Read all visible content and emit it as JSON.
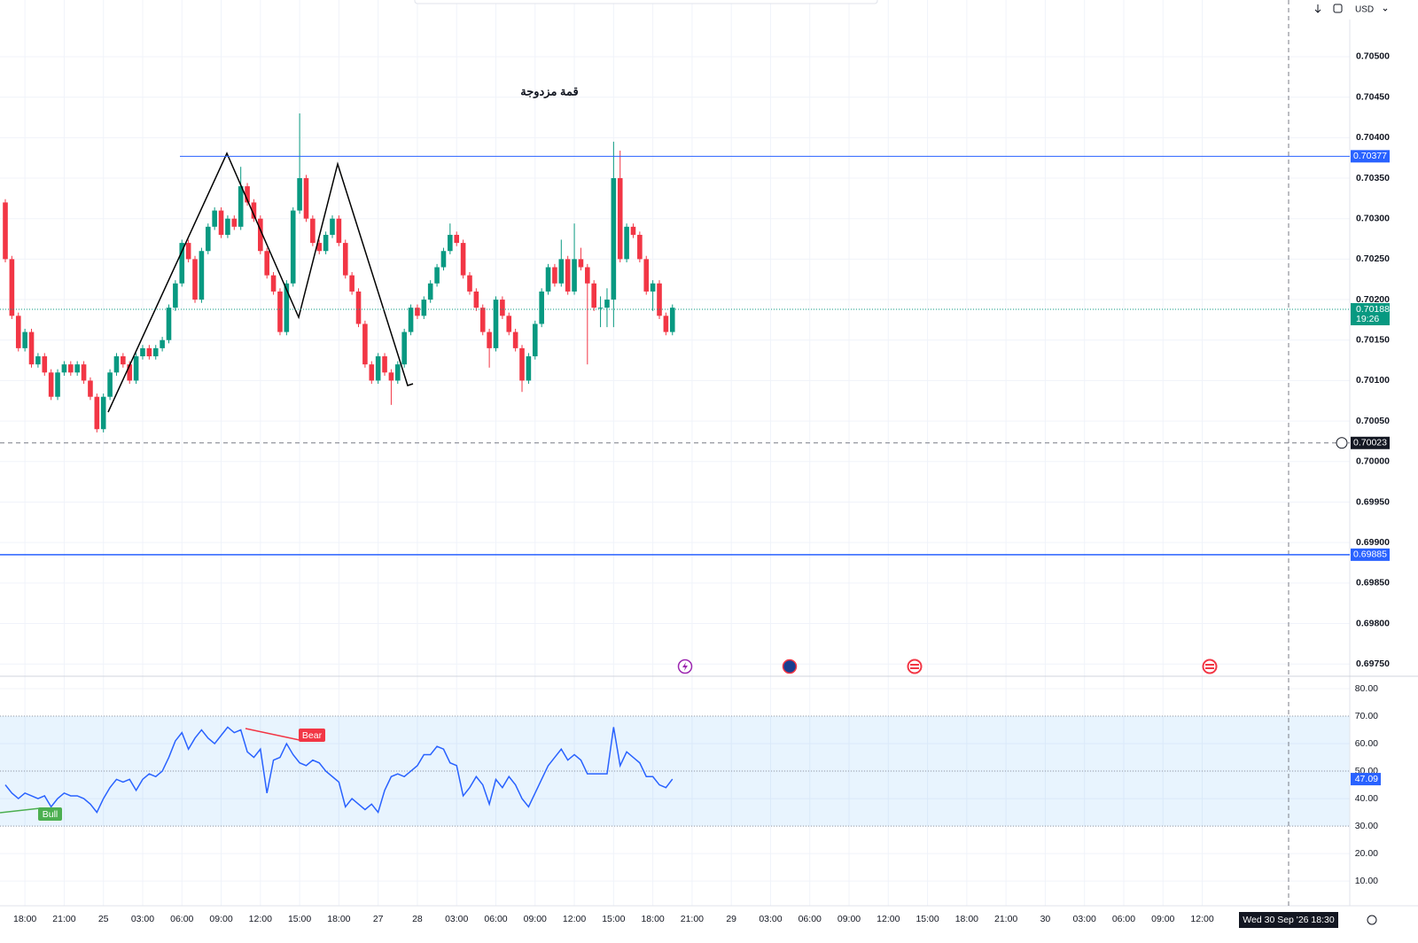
{
  "chart_data": [
    {
      "type": "candlestick",
      "title": "قمة مزدوجة",
      "currency": "USD",
      "up_color": "#089981",
      "down_color": "#f23645",
      "open": [
        0.7032,
        0.7025,
        0.7018,
        0.7014,
        0.7016,
        0.7012,
        0.7013,
        0.7011,
        0.7008,
        0.7011,
        0.7012,
        0.7011,
        0.7012,
        0.701,
        0.7008,
        0.7004,
        0.7008,
        0.7011,
        0.7013,
        0.7012,
        0.701,
        0.7013,
        0.7014,
        0.7013,
        0.7014,
        0.7015,
        0.7019,
        0.7022,
        0.7027,
        0.7025,
        0.702,
        0.7026,
        0.7029,
        0.7031,
        0.7028,
        0.703,
        0.7029,
        0.7034,
        0.7032,
        0.703,
        0.7026,
        0.7023,
        0.7021,
        0.7016,
        0.7022,
        0.7031,
        0.7035,
        0.703,
        0.7027,
        0.7026,
        0.7028,
        0.703,
        0.7027,
        0.7023,
        0.7021,
        0.7017,
        0.7012,
        0.701,
        0.7013,
        0.7011,
        0.701,
        0.7012,
        0.7016,
        0.7019,
        0.7018,
        0.702,
        0.7022,
        0.7024,
        0.7026,
        0.7028,
        0.7027,
        0.7023,
        0.7021,
        0.7019,
        0.7016,
        0.7014,
        0.702,
        0.7018,
        0.7016,
        0.7014,
        0.701,
        0.7013,
        0.7017,
        0.7021,
        0.7024,
        0.7022,
        0.7025,
        0.7021,
        0.7025,
        0.7024,
        0.7022,
        0.7019,
        0.7019,
        0.702,
        0.7035,
        0.7025,
        0.7029,
        0.7028,
        0.7025,
        0.7021,
        0.7022,
        0.7018,
        0.7016
      ],
      "high": [
        0.70324,
        0.70254,
        0.70184,
        0.70164,
        0.70164,
        0.70134,
        0.70134,
        0.70114,
        0.70114,
        0.70124,
        0.70124,
        0.70124,
        0.70124,
        0.70104,
        0.70084,
        0.70084,
        0.70114,
        0.70134,
        0.70134,
        0.70124,
        0.70134,
        0.70144,
        0.70144,
        0.70144,
        0.70154,
        0.70194,
        0.70224,
        0.70274,
        0.70274,
        0.70254,
        0.70264,
        0.70294,
        0.70314,
        0.70314,
        0.70304,
        0.70304,
        0.70364,
        0.70344,
        0.70324,
        0.70304,
        0.70264,
        0.70234,
        0.70214,
        0.70224,
        0.70314,
        0.7043,
        0.70354,
        0.70304,
        0.70274,
        0.70284,
        0.70304,
        0.70304,
        0.70274,
        0.70234,
        0.70214,
        0.70174,
        0.70124,
        0.70134,
        0.70134,
        0.70114,
        0.70124,
        0.70164,
        0.70194,
        0.70194,
        0.70204,
        0.70224,
        0.70244,
        0.70264,
        0.70294,
        0.70284,
        0.70274,
        0.70234,
        0.70214,
        0.70194,
        0.70164,
        0.70204,
        0.70204,
        0.70184,
        0.70164,
        0.70144,
        0.70134,
        0.70174,
        0.70214,
        0.70244,
        0.70244,
        0.70274,
        0.70254,
        0.70294,
        0.70264,
        0.70244,
        0.70224,
        0.70204,
        0.70214,
        0.70395,
        0.70384,
        0.70294,
        0.70294,
        0.70284,
        0.70254,
        0.70224,
        0.70224,
        0.70184,
        0.70194
      ],
      "low": [
        0.70246,
        0.70176,
        0.70136,
        0.70136,
        0.70116,
        0.70116,
        0.70106,
        0.70076,
        0.70076,
        0.70106,
        0.70106,
        0.70106,
        0.70096,
        0.70076,
        0.70036,
        0.70036,
        0.70076,
        0.70106,
        0.70116,
        0.70096,
        0.70096,
        0.70126,
        0.70126,
        0.70126,
        0.70136,
        0.70146,
        0.70186,
        0.70216,
        0.70246,
        0.70196,
        0.70196,
        0.70256,
        0.70286,
        0.70276,
        0.70276,
        0.70286,
        0.70286,
        0.70316,
        0.70296,
        0.70256,
        0.70226,
        0.70206,
        0.70156,
        0.70156,
        0.70216,
        0.70306,
        0.70296,
        0.70266,
        0.70256,
        0.70256,
        0.70276,
        0.70266,
        0.70226,
        0.70206,
        0.70166,
        0.70116,
        0.70096,
        0.70096,
        0.70106,
        0.7007,
        0.70096,
        0.70116,
        0.70156,
        0.70176,
        0.70176,
        0.70196,
        0.70216,
        0.70236,
        0.70256,
        0.70266,
        0.70226,
        0.70206,
        0.70186,
        0.70156,
        0.70116,
        0.70136,
        0.70176,
        0.70156,
        0.70136,
        0.70086,
        0.70096,
        0.70126,
        0.70166,
        0.70206,
        0.70216,
        0.70216,
        0.70206,
        0.70206,
        0.70236,
        0.7012,
        0.70186,
        0.70166,
        0.70166,
        0.70166,
        0.70246,
        0.70246,
        0.70276,
        0.70246,
        0.70206,
        0.70186,
        0.70176,
        0.70156,
        0.70156
      ],
      "close": [
        0.7025,
        0.7018,
        0.7014,
        0.7016,
        0.7012,
        0.7013,
        0.7011,
        0.7008,
        0.7011,
        0.7012,
        0.7011,
        0.7012,
        0.701,
        0.7008,
        0.7004,
        0.7008,
        0.7011,
        0.7013,
        0.7012,
        0.701,
        0.7013,
        0.7014,
        0.7013,
        0.7014,
        0.7015,
        0.7019,
        0.7022,
        0.7027,
        0.7025,
        0.702,
        0.7026,
        0.7029,
        0.7031,
        0.7028,
        0.703,
        0.7029,
        0.7034,
        0.7032,
        0.703,
        0.7026,
        0.7023,
        0.7021,
        0.7016,
        0.7022,
        0.7031,
        0.7035,
        0.703,
        0.7027,
        0.7026,
        0.7028,
        0.703,
        0.7027,
        0.7023,
        0.7021,
        0.7017,
        0.7012,
        0.701,
        0.7013,
        0.7011,
        0.701,
        0.7012,
        0.7016,
        0.7019,
        0.7018,
        0.702,
        0.7022,
        0.7024,
        0.7026,
        0.7028,
        0.7027,
        0.7023,
        0.7021,
        0.7019,
        0.7016,
        0.7014,
        0.702,
        0.7018,
        0.7016,
        0.7014,
        0.701,
        0.7013,
        0.7017,
        0.7021,
        0.7024,
        0.7022,
        0.7025,
        0.7021,
        0.7025,
        0.7024,
        0.7022,
        0.7019,
        0.7019,
        0.702,
        0.7035,
        0.7025,
        0.7029,
        0.7028,
        0.7025,
        0.7021,
        0.7022,
        0.7018,
        0.7016,
        0.7019
      ],
      "ylim": [
        0.69736,
        0.7057
      ],
      "yticks": [
        {
          "value": 0.705,
          "label": "0.70500"
        },
        {
          "value": 0.7045,
          "label": "0.70450"
        },
        {
          "value": 0.704,
          "label": "0.70400"
        },
        {
          "value": 0.7035,
          "label": "0.70350"
        },
        {
          "value": 0.703,
          "label": "0.70300"
        },
        {
          "value": 0.7025,
          "label": "0.70250"
        },
        {
          "value": 0.702,
          "label": "0.70200"
        },
        {
          "value": 0.7015,
          "label": "0.70150"
        },
        {
          "value": 0.701,
          "label": "0.70100"
        },
        {
          "value": 0.7005,
          "label": "0.70050"
        },
        {
          "value": 0.7,
          "label": "0.70000"
        },
        {
          "value": 0.6995,
          "label": "0.69950"
        },
        {
          "value": 0.699,
          "label": "0.69900"
        },
        {
          "value": 0.6985,
          "label": "0.69850"
        },
        {
          "value": 0.698,
          "label": "0.69800"
        },
        {
          "value": 0.6975,
          "label": "0.69750"
        }
      ],
      "xticks": [
        {
          "value": 3,
          "label": "18:00"
        },
        {
          "value": 9,
          "label": "21:00"
        },
        {
          "value": 15,
          "label": "25"
        },
        {
          "value": 21,
          "label": "03:00"
        },
        {
          "value": 27,
          "label": "06:00"
        },
        {
          "value": 33,
          "label": "09:00"
        },
        {
          "value": 39,
          "label": "12:00"
        },
        {
          "value": 45,
          "label": "15:00"
        },
        {
          "value": 51,
          "label": "18:00"
        },
        {
          "value": 57,
          "label": "27"
        },
        {
          "value": 63,
          "label": "28"
        },
        {
          "value": 69,
          "label": "03:00"
        },
        {
          "value": 75,
          "label": "06:00"
        },
        {
          "value": 81,
          "label": "09:00"
        },
        {
          "value": 87,
          "label": "12:00"
        },
        {
          "value": 93,
          "label": "15:00"
        },
        {
          "value": 99,
          "label": "18:00"
        },
        {
          "value": 105,
          "label": "21:00"
        },
        {
          "value": 111,
          "label": "29"
        },
        {
          "value": 117,
          "label": "03:00"
        },
        {
          "value": 123,
          "label": "06:00"
        },
        {
          "value": 129,
          "label": "09:00"
        },
        {
          "value": 135,
          "label": "12:00"
        },
        {
          "value": 141,
          "label": "15:00"
        },
        {
          "value": 147,
          "label": "18:00"
        },
        {
          "value": 153,
          "label": "21:00"
        },
        {
          "value": 159,
          "label": "30"
        },
        {
          "value": 165,
          "label": "03:00"
        },
        {
          "value": 171,
          "label": "06:00"
        },
        {
          "value": 177,
          "label": "09:00"
        },
        {
          "value": 183,
          "label": "12:00"
        }
      ],
      "price_lines": [
        {
          "value": 0.70377,
          "color": "#2962ff"
        },
        {
          "value": 0.69885,
          "color": "#2962ff"
        }
      ],
      "last_price": {
        "value": 0.70188,
        "countdown": "19:26",
        "color": "#089981"
      },
      "crosshair": {
        "value": 0.70023,
        "time": "Wed 30 Sep '26  18:30"
      }
    },
    {
      "type": "line",
      "color": "#2962ff",
      "values": [
        45,
        42,
        40,
        42,
        41,
        40,
        41,
        37,
        40,
        42,
        41,
        41,
        40,
        38,
        35,
        40,
        44,
        47,
        46,
        47,
        43,
        47,
        49,
        48,
        50,
        55,
        61,
        64,
        58,
        62,
        65,
        62,
        60,
        63,
        66,
        64,
        65,
        57,
        55,
        58,
        42,
        54,
        55,
        60,
        56,
        53,
        52,
        54,
        53,
        50,
        48,
        46,
        37,
        40,
        38,
        36,
        38,
        35,
        43,
        48,
        49,
        48,
        50,
        52,
        56,
        56,
        59,
        58,
        53,
        52,
        41,
        44,
        48,
        45,
        38,
        47,
        44,
        48,
        45,
        40,
        37,
        42,
        47,
        52,
        55,
        58,
        54,
        56,
        54,
        49,
        49,
        49,
        49,
        66,
        52,
        57,
        55,
        53,
        48,
        48,
        45,
        44,
        47.09
      ],
      "ylim": [
        1,
        84.2
      ],
      "yticks": [
        {
          "value": 80,
          "label": "80.00"
        },
        {
          "value": 70,
          "label": "70.00"
        },
        {
          "value": 60,
          "label": "60.00"
        },
        {
          "value": 50,
          "label": "50.00"
        },
        {
          "value": 40,
          "label": "40.00"
        },
        {
          "value": 30,
          "label": "30.00"
        },
        {
          "value": 20,
          "label": "20.00"
        },
        {
          "value": 10,
          "label": "10.00"
        }
      ],
      "band": [
        30,
        70
      ],
      "midline": 50,
      "divergences": [
        "Bull",
        "Bear"
      ]
    }
  ]
}
